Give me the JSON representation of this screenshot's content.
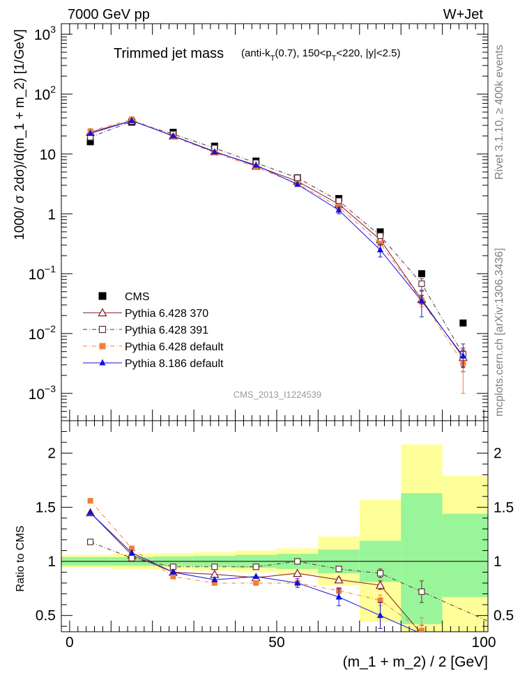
{
  "header": {
    "left": "7000 GeV pp",
    "right": "W+Jet"
  },
  "title": {
    "main": "Trimmed jet mass",
    "sub": "(anti-k_T(0.7), 150<p_T<220, |y|<2.5)"
  },
  "side_labels": {
    "rivet": "Rivet 3.1.10, ≥ 400k events",
    "mcplots": "mcplots.cern.ch [arXiv:1306.3436]"
  },
  "watermark": "CMS_2013_I1224539",
  "chart_data": [
    {
      "type": "scatter",
      "name": "main",
      "scale": "log",
      "ylabel": "1000/ σ 2dσ)/d(m_1 + m_2) [1/GeV]",
      "ylim": [
        0.00035,
        1500
      ],
      "xlim": [
        -2,
        101
      ],
      "y_ticks": [
        {
          "v": 1000,
          "label": "10",
          "sup": "3"
        },
        {
          "v": 100,
          "label": "10",
          "sup": "2"
        },
        {
          "v": 10,
          "label": "10",
          "sup": ""
        },
        {
          "v": 1,
          "label": "1",
          "sup": ""
        },
        {
          "v": 0.1,
          "label": "10",
          "sup": "−1"
        },
        {
          "v": 0.01,
          "label": "10",
          "sup": "−2"
        },
        {
          "v": 0.001,
          "label": "10",
          "sup": "−3"
        }
      ],
      "x": [
        5,
        15,
        25,
        35,
        45,
        55,
        65,
        75,
        85,
        95
      ],
      "series": [
        {
          "name": "CMS",
          "color": "#000000",
          "marker": "square-filled",
          "line": "none",
          "values": [
            16,
            34,
            23,
            13.5,
            7.6,
            4.0,
            1.8,
            0.5,
            0.1,
            0.015
          ]
        },
        {
          "name": "Pythia 6.428 370",
          "color": "#7f1420",
          "marker": "triangle-open",
          "line": "solid",
          "values": [
            23,
            36,
            20,
            11,
            6.3,
            3.5,
            1.45,
            0.37,
            0.037,
            0.004
          ],
          "err": [
            0,
            0,
            0,
            0,
            0,
            0,
            0,
            0.03,
            0.006,
            0.0012
          ]
        },
        {
          "name": "Pythia 6.428 391",
          "color": "#5a3032",
          "marker": "square-open",
          "line": "dashdot",
          "values": [
            19,
            35,
            21.5,
            12.5,
            7.1,
            4.0,
            1.65,
            0.43,
            0.068,
            0.0045
          ],
          "err": [
            0,
            0,
            0,
            0,
            0,
            0,
            0,
            0.03,
            0.015,
            0.0022
          ]
        },
        {
          "name": "Pythia 6.428 default",
          "color": "#f07f3a",
          "marker": "square-filled",
          "line": "dashdot",
          "values": [
            24,
            38,
            19.5,
            10.5,
            6.0,
            3.2,
            1.3,
            0.32,
            0.036,
            0.0032
          ],
          "err": [
            0,
            0,
            0,
            0,
            0,
            0,
            0,
            0.03,
            0.008,
            0.0022
          ]
        },
        {
          "name": "Pythia 8.186 default",
          "color": "#1010e0",
          "marker": "triangle-filled",
          "line": "solid",
          "values": [
            22,
            36,
            20,
            10.8,
            6.5,
            3.1,
            1.15,
            0.25,
            0.035,
            0.0042
          ],
          "err": [
            0,
            0,
            0,
            0,
            0,
            0,
            0.15,
            0.06,
            0.016,
            0.0015
          ]
        }
      ]
    },
    {
      "type": "scatter",
      "name": "ratio",
      "scale": "linear",
      "ylabel": "Ratio to CMS",
      "xlabel": "(m_1 + m_2) / 2 [GeV]",
      "ylim": [
        0.35,
        2.3
      ],
      "xlim": [
        -2,
        101
      ],
      "y_ticks": [
        0.5,
        1,
        1.5,
        2
      ],
      "x_ticks": [
        0,
        50,
        100
      ],
      "bands": {
        "edges": [
          -2,
          10,
          20,
          30,
          40,
          50,
          60,
          70,
          80,
          90,
          101
        ],
        "inner": [
          [
            0.96,
            1.04
          ],
          [
            0.96,
            1.04
          ],
          [
            0.955,
            1.045
          ],
          [
            0.95,
            1.05
          ],
          [
            0.94,
            1.06
          ],
          [
            0.93,
            1.07
          ],
          [
            0.89,
            1.11
          ],
          [
            0.81,
            1.19
          ],
          [
            0.42,
            1.63
          ],
          [
            0.67,
            1.44
          ]
        ],
        "outer": [
          [
            0.94,
            1.06
          ],
          [
            0.93,
            1.07
          ],
          [
            0.925,
            1.075
          ],
          [
            0.915,
            1.085
          ],
          [
            0.9,
            1.1
          ],
          [
            0.88,
            1.12
          ],
          [
            0.78,
            1.23
          ],
          [
            0.44,
            1.57
          ],
          [
            0.05,
            2.08
          ],
          [
            0.1,
            1.79
          ]
        ],
        "inner_color": "#99f599",
        "outer_color": "#ffff99"
      },
      "x": [
        5,
        15,
        25,
        35,
        45,
        55,
        65,
        75,
        85,
        95
      ],
      "series": [
        {
          "name": "Pythia 6.428 370",
          "values": [
            1.45,
            1.06,
            0.9,
            0.88,
            0.85,
            0.89,
            0.83,
            0.78,
            0.33,
            null
          ],
          "err": [
            0,
            0,
            0,
            0,
            0,
            0,
            0.02,
            0.04,
            0.08,
            0
          ]
        },
        {
          "name": "Pythia 6.428 391",
          "values": [
            1.18,
            1.03,
            0.95,
            0.95,
            0.95,
            1.0,
            0.93,
            0.89,
            0.72,
            null
          ],
          "err": [
            0,
            0,
            0,
            0,
            0,
            0,
            0.02,
            0.04,
            0.1,
            0
          ]
        },
        {
          "name": "Pythia 6.428 default",
          "values": [
            1.56,
            1.12,
            0.86,
            0.8,
            0.8,
            0.8,
            0.73,
            0.64,
            0.36,
            null
          ],
          "err": [
            0,
            0,
            0,
            0,
            0,
            0,
            0.03,
            0.05,
            0.12,
            0
          ]
        },
        {
          "name": "Pythia 8.186 default",
          "values": [
            1.45,
            1.08,
            0.9,
            0.83,
            0.86,
            0.8,
            0.67,
            0.5,
            null,
            null
          ],
          "err": [
            0,
            0,
            0,
            0,
            0,
            0.04,
            0.08,
            0.12,
            0,
            0
          ]
        }
      ]
    }
  ]
}
